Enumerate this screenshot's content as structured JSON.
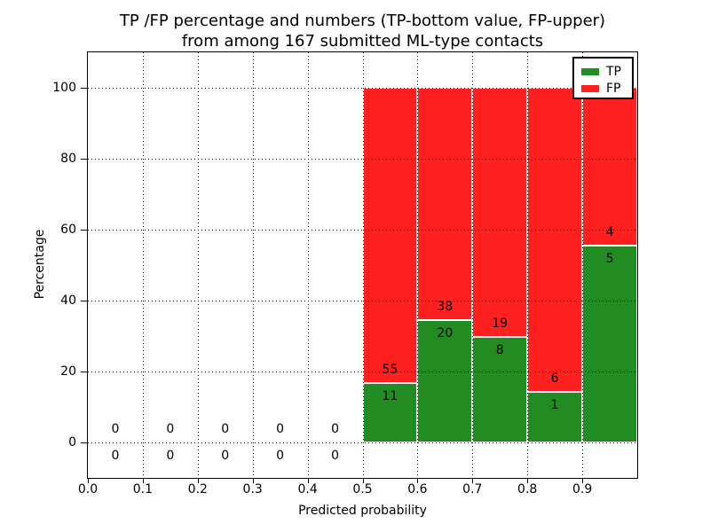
{
  "chart_data": {
    "type": "bar",
    "stacked": true,
    "title": "TP /FP percentage and numbers (TP-bottom value, FP-upper) from among 167 submitted ML-type contacts",
    "title_line1": "TP /FP percentage and numbers (TP-bottom value, FP-upper)",
    "title_line2": "from among 167 submitted ML-type contacts",
    "total_contacts": 167,
    "xlabel": "Predicted probability",
    "ylabel": "Percentage",
    "xlim": [
      0.0,
      1.0
    ],
    "ylim": [
      -10,
      110
    ],
    "xticks": [
      0.0,
      0.1,
      0.2,
      0.3,
      0.4,
      0.5,
      0.6,
      0.7,
      0.8,
      0.9
    ],
    "xtick_labels": [
      "0.0",
      "0.1",
      "0.2",
      "0.3",
      "0.4",
      "0.5",
      "0.6",
      "0.7",
      "0.8",
      "0.9"
    ],
    "yticks": [
      0,
      20,
      40,
      60,
      80,
      100
    ],
    "ytick_labels": [
      "0",
      "20",
      "40",
      "60",
      "80",
      "100"
    ],
    "grid": {
      "visible": true,
      "style": "dotted",
      "drawn_over_bars": true
    },
    "colors": {
      "tp": "#228b22",
      "fp": "#ff2020",
      "bar_edge": "#ffffff"
    },
    "legend": {
      "position": "upper right",
      "entries": [
        {
          "label": "TP",
          "color": "#228b22"
        },
        {
          "label": "FP",
          "color": "#ff2020"
        }
      ]
    },
    "bins": [
      {
        "range": [
          0.0,
          0.1
        ],
        "tp_count": 0,
        "fp_count": 0,
        "tp_pct": 0,
        "fp_pct": 0
      },
      {
        "range": [
          0.1,
          0.2
        ],
        "tp_count": 0,
        "fp_count": 0,
        "tp_pct": 0,
        "fp_pct": 0
      },
      {
        "range": [
          0.2,
          0.3
        ],
        "tp_count": 0,
        "fp_count": 0,
        "tp_pct": 0,
        "fp_pct": 0
      },
      {
        "range": [
          0.3,
          0.4
        ],
        "tp_count": 0,
        "fp_count": 0,
        "tp_pct": 0,
        "fp_pct": 0
      },
      {
        "range": [
          0.4,
          0.5
        ],
        "tp_count": 0,
        "fp_count": 0,
        "tp_pct": 0,
        "fp_pct": 0
      },
      {
        "range": [
          0.5,
          0.6
        ],
        "tp_count": 11,
        "fp_count": 55,
        "tp_pct": 16.67,
        "fp_pct": 83.33
      },
      {
        "range": [
          0.6,
          0.7
        ],
        "tp_count": 20,
        "fp_count": 38,
        "tp_pct": 34.48,
        "fp_pct": 65.52
      },
      {
        "range": [
          0.7,
          0.8
        ],
        "tp_count": 8,
        "fp_count": 19,
        "tp_pct": 29.63,
        "fp_pct": 70.37
      },
      {
        "range": [
          0.8,
          0.9
        ],
        "tp_count": 1,
        "fp_count": 6,
        "tp_pct": 14.29,
        "fp_pct": 85.71
      },
      {
        "range": [
          0.9,
          1.0
        ],
        "tp_count": 5,
        "fp_count": 4,
        "tp_pct": 55.56,
        "fp_pct": 44.44
      }
    ]
  }
}
